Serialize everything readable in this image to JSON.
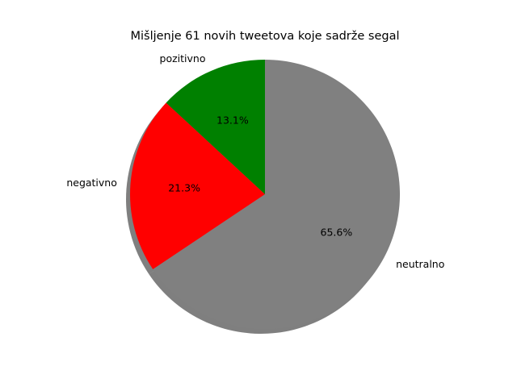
{
  "chart_data": {
    "type": "pie",
    "title": "Mišljenje 61 novih tweetova koje sadrže segal",
    "slices": [
      {
        "label": "pozitivno",
        "value": 13.1,
        "pct_label": "13.1%",
        "color": "#008000"
      },
      {
        "label": "negativno",
        "value": 21.3,
        "pct_label": "21.3%",
        "color": "#ff0000"
      },
      {
        "label": "neutralno",
        "value": 65.6,
        "pct_label": "65.6%",
        "color": "#808080"
      }
    ],
    "start_angle": 90,
    "direction": "counterclockwise",
    "shadow": true,
    "legend": "none"
  }
}
